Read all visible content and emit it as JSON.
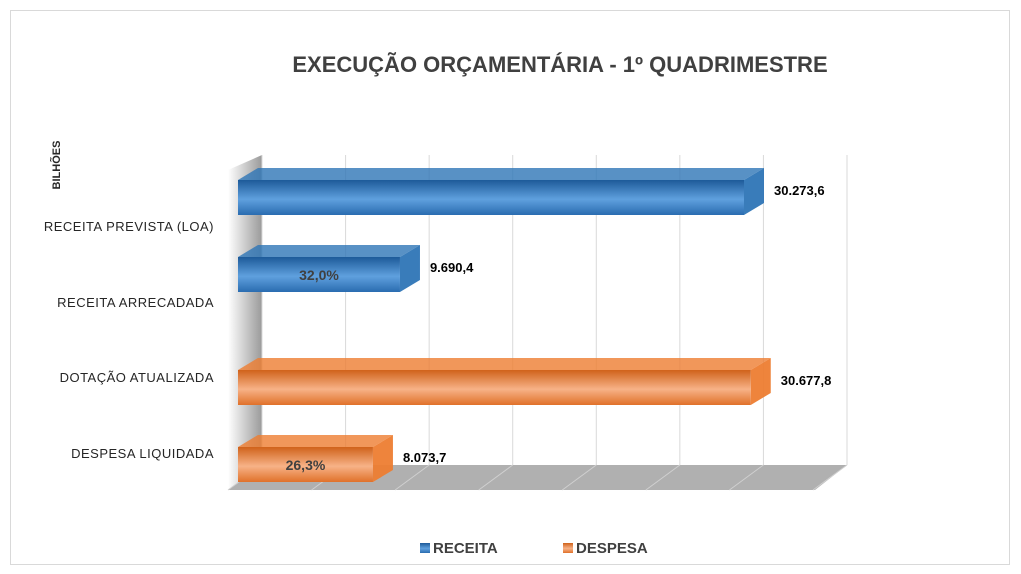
{
  "chart_data": {
    "type": "bar3d-horizontal",
    "title": "EXECUÇÃO ORÇAMENTÁRIA  - 1º QUADRIMESTRE",
    "y_label": "BILHÕES",
    "categories": [
      "RECEITA PREVISTA (LOA)",
      "RECEITA ARRECADADA",
      "DOTAÇÃO ATUALIZADA",
      "DESPESA LIQUIDADA"
    ],
    "series": [
      {
        "name": "RECEITA",
        "color": "#2e75b6",
        "values": [
          30273.6,
          9690.4,
          null,
          null
        ],
        "value_labels": [
          "30.273,6",
          "9.690,4",
          null,
          null
        ],
        "inner_labels": [
          null,
          "32,0%",
          null,
          null
        ]
      },
      {
        "name": "DESPESA",
        "color": "#ed7d31",
        "values": [
          null,
          null,
          30677.8,
          8073.7
        ],
        "value_labels": [
          null,
          null,
          "30.677,8",
          "8.073,7"
        ],
        "inner_labels": [
          null,
          null,
          null,
          "26,3%"
        ]
      }
    ],
    "xlim": [
      0,
      35000
    ],
    "xticks": [
      0,
      5000,
      10000,
      15000,
      20000,
      25000,
      30000,
      35000
    ],
    "grid": true,
    "legend": "bottom"
  }
}
